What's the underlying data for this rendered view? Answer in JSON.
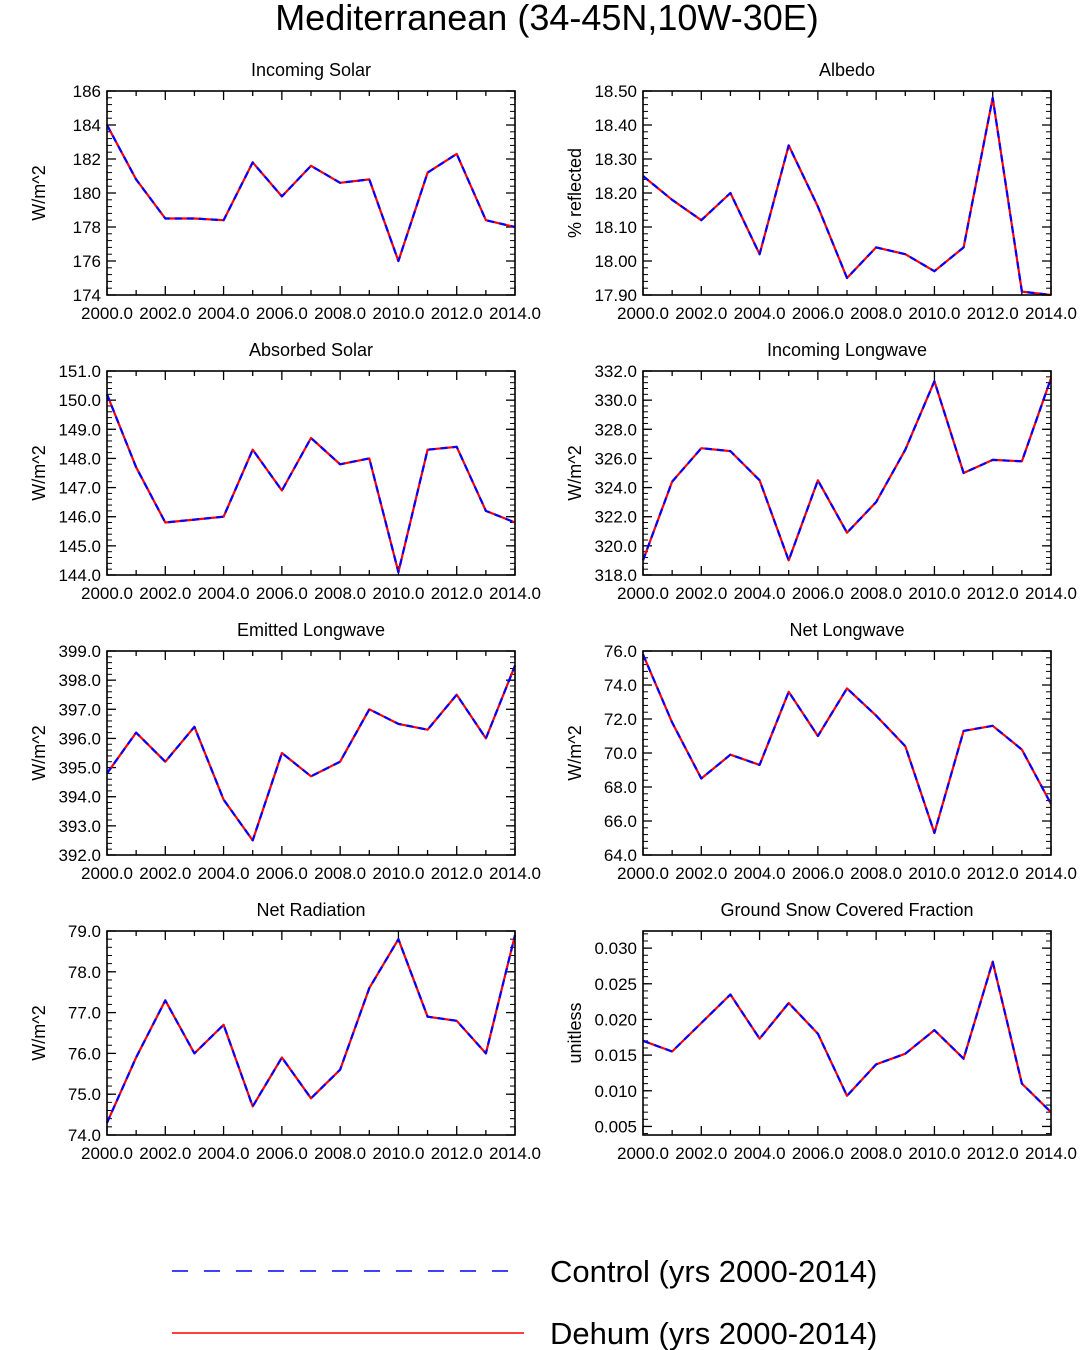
{
  "figure": {
    "title": "Mediterranean (34-45N,10W-30E)"
  },
  "colors": {
    "control": "#0000ff",
    "dehum": "#ff0000",
    "axis": "#000000"
  },
  "legend": [
    {
      "key": "control",
      "label": "Control (yrs 2000-2014)",
      "style": "dashed"
    },
    {
      "key": "dehum",
      "label": "Dehum (yrs 2000-2014)",
      "style": "solid"
    }
  ],
  "chart_data": [
    {
      "type": "line",
      "title": "Incoming Solar",
      "ylabel": "W/m^2",
      "xlim": [
        2000,
        2014
      ],
      "ylim": [
        174,
        186
      ],
      "yticks": [
        "174",
        "176",
        "178",
        "180",
        "182",
        "184",
        "186"
      ],
      "xticks": [
        "2000.0",
        "2002.0",
        "2004.0",
        "2006.0",
        "2008.0",
        "2010.0",
        "2012.0",
        "2014.0"
      ],
      "x": [
        2000,
        2001,
        2002,
        2003,
        2004,
        2005,
        2006,
        2007,
        2008,
        2009,
        2010,
        2011,
        2012,
        2013,
        2014
      ],
      "series": [
        {
          "name": "Control (yrs 2000-2014)",
          "values": [
            184.0,
            180.8,
            178.5,
            178.5,
            178.4,
            181.8,
            179.8,
            181.6,
            180.6,
            180.8,
            176.0,
            181.2,
            182.3,
            178.4,
            178.0
          ]
        },
        {
          "name": "Dehum (yrs 2000-2014)",
          "values": [
            184.0,
            180.8,
            178.5,
            178.5,
            178.4,
            181.8,
            179.8,
            181.6,
            180.6,
            180.8,
            176.0,
            181.2,
            182.3,
            178.4,
            178.0
          ]
        }
      ]
    },
    {
      "type": "line",
      "title": "Albedo",
      "ylabel": "% reflected",
      "xlim": [
        2000,
        2014
      ],
      "ylim": [
        17.9,
        18.5
      ],
      "yticks": [
        "17.90",
        "18.00",
        "18.10",
        "18.20",
        "18.30",
        "18.40",
        "18.50"
      ],
      "xticks": [
        "2000.0",
        "2002.0",
        "2004.0",
        "2006.0",
        "2008.0",
        "2010.0",
        "2012.0",
        "2014.0"
      ],
      "x": [
        2000,
        2001,
        2002,
        2003,
        2004,
        2005,
        2006,
        2007,
        2008,
        2009,
        2010,
        2011,
        2012,
        2013,
        2014
      ],
      "series": [
        {
          "name": "Control (yrs 2000-2014)",
          "values": [
            18.25,
            18.18,
            18.12,
            18.2,
            18.02,
            18.34,
            18.16,
            17.95,
            18.04,
            18.02,
            17.97,
            18.04,
            18.48,
            17.91,
            17.9
          ]
        },
        {
          "name": "Dehum (yrs 2000-2014)",
          "values": [
            18.25,
            18.18,
            18.12,
            18.2,
            18.02,
            18.34,
            18.16,
            17.95,
            18.04,
            18.02,
            17.97,
            18.04,
            18.48,
            17.91,
            17.9
          ]
        }
      ]
    },
    {
      "type": "line",
      "title": "Absorbed Solar",
      "ylabel": "W/m^2",
      "xlim": [
        2000,
        2014
      ],
      "ylim": [
        144,
        151
      ],
      "yticks": [
        "144.0",
        "145.0",
        "146.0",
        "147.0",
        "148.0",
        "149.0",
        "150.0",
        "151.0"
      ],
      "xticks": [
        "2000.0",
        "2002.0",
        "2004.0",
        "2006.0",
        "2008.0",
        "2010.0",
        "2012.0",
        "2014.0"
      ],
      "x": [
        2000,
        2001,
        2002,
        2003,
        2004,
        2005,
        2006,
        2007,
        2008,
        2009,
        2010,
        2011,
        2012,
        2013,
        2014
      ],
      "series": [
        {
          "name": "Control (yrs 2000-2014)",
          "values": [
            150.2,
            147.7,
            145.8,
            145.9,
            146.0,
            148.3,
            146.9,
            148.7,
            147.8,
            148.0,
            144.1,
            148.3,
            148.4,
            146.2,
            145.8
          ]
        },
        {
          "name": "Dehum (yrs 2000-2014)",
          "values": [
            150.2,
            147.7,
            145.8,
            145.9,
            146.0,
            148.3,
            146.9,
            148.7,
            147.8,
            148.0,
            144.1,
            148.3,
            148.4,
            146.2,
            145.8
          ]
        }
      ]
    },
    {
      "type": "line",
      "title": "Incoming Longwave",
      "ylabel": "W/m^2",
      "xlim": [
        2000,
        2014
      ],
      "ylim": [
        318,
        332
      ],
      "yticks": [
        "318.0",
        "320.0",
        "322.0",
        "324.0",
        "326.0",
        "328.0",
        "330.0",
        "332.0"
      ],
      "xticks": [
        "2000.0",
        "2002.0",
        "2004.0",
        "2006.0",
        "2008.0",
        "2010.0",
        "2012.0",
        "2014.0"
      ],
      "x": [
        2000,
        2001,
        2002,
        2003,
        2004,
        2005,
        2006,
        2007,
        2008,
        2009,
        2010,
        2011,
        2012,
        2013,
        2014
      ],
      "series": [
        {
          "name": "Control (yrs 2000-2014)",
          "values": [
            319.0,
            324.4,
            326.7,
            326.5,
            324.5,
            319.0,
            324.5,
            320.9,
            323.0,
            326.6,
            331.3,
            325.0,
            325.9,
            325.8,
            331.5
          ]
        },
        {
          "name": "Dehum (yrs 2000-2014)",
          "values": [
            319.0,
            324.4,
            326.7,
            326.5,
            324.5,
            319.0,
            324.5,
            320.9,
            323.0,
            326.6,
            331.3,
            325.0,
            325.9,
            325.8,
            331.5
          ]
        }
      ]
    },
    {
      "type": "line",
      "title": "Emitted Longwave",
      "ylabel": "W/m^2",
      "xlim": [
        2000,
        2014
      ],
      "ylim": [
        392,
        399
      ],
      "yticks": [
        "392.0",
        "393.0",
        "394.0",
        "395.0",
        "396.0",
        "397.0",
        "398.0",
        "399.0"
      ],
      "xticks": [
        "2000.0",
        "2002.0",
        "2004.0",
        "2006.0",
        "2008.0",
        "2010.0",
        "2012.0",
        "2014.0"
      ],
      "x": [
        2000,
        2001,
        2002,
        2003,
        2004,
        2005,
        2006,
        2007,
        2008,
        2009,
        2010,
        2011,
        2012,
        2013,
        2014
      ],
      "series": [
        {
          "name": "Control (yrs 2000-2014)",
          "values": [
            394.8,
            396.2,
            395.2,
            396.4,
            393.9,
            392.5,
            395.5,
            394.7,
            395.2,
            397.0,
            396.5,
            396.3,
            397.5,
            396.0,
            398.5
          ]
        },
        {
          "name": "Dehum (yrs 2000-2014)",
          "values": [
            394.8,
            396.2,
            395.2,
            396.4,
            393.9,
            392.5,
            395.5,
            394.7,
            395.2,
            397.0,
            396.5,
            396.3,
            397.5,
            396.0,
            398.5
          ]
        }
      ]
    },
    {
      "type": "line",
      "title": "Net Longwave",
      "ylabel": "W/m^2",
      "xlim": [
        2000,
        2014
      ],
      "ylim": [
        64,
        76
      ],
      "yticks": [
        "64.0",
        "66.0",
        "68.0",
        "70.0",
        "72.0",
        "74.0",
        "76.0"
      ],
      "xticks": [
        "2000.0",
        "2002.0",
        "2004.0",
        "2006.0",
        "2008.0",
        "2010.0",
        "2012.0",
        "2014.0"
      ],
      "x": [
        2000,
        2001,
        2002,
        2003,
        2004,
        2005,
        2006,
        2007,
        2008,
        2009,
        2010,
        2011,
        2012,
        2013,
        2014
      ],
      "series": [
        {
          "name": "Control (yrs 2000-2014)",
          "values": [
            75.8,
            71.8,
            68.5,
            69.9,
            69.3,
            73.6,
            71.0,
            73.8,
            72.2,
            70.4,
            65.3,
            71.3,
            71.6,
            70.2,
            67.0
          ]
        },
        {
          "name": "Dehum (yrs 2000-2014)",
          "values": [
            75.8,
            71.8,
            68.5,
            69.9,
            69.3,
            73.6,
            71.0,
            73.8,
            72.2,
            70.4,
            65.3,
            71.3,
            71.6,
            70.2,
            67.0
          ]
        }
      ]
    },
    {
      "type": "line",
      "title": "Net Radiation",
      "ylabel": "W/m^2",
      "xlim": [
        2000,
        2014
      ],
      "ylim": [
        74,
        79
      ],
      "yticks": [
        "74.0",
        "75.0",
        "76.0",
        "77.0",
        "78.0",
        "79.0"
      ],
      "xticks": [
        "2000.0",
        "2002.0",
        "2004.0",
        "2006.0",
        "2008.0",
        "2010.0",
        "2012.0",
        "2014.0"
      ],
      "x": [
        2000,
        2001,
        2002,
        2003,
        2004,
        2005,
        2006,
        2007,
        2008,
        2009,
        2010,
        2011,
        2012,
        2013,
        2014
      ],
      "series": [
        {
          "name": "Control (yrs 2000-2014)",
          "values": [
            74.3,
            75.9,
            77.3,
            76.0,
            76.7,
            74.7,
            75.9,
            74.9,
            75.6,
            77.6,
            78.8,
            76.9,
            76.8,
            76.0,
            78.9
          ]
        },
        {
          "name": "Dehum (yrs 2000-2014)",
          "values": [
            74.3,
            75.9,
            77.3,
            76.0,
            76.7,
            74.7,
            75.9,
            74.9,
            75.6,
            77.6,
            78.8,
            76.9,
            76.8,
            76.0,
            78.9
          ]
        }
      ]
    },
    {
      "type": "line",
      "title": "Ground Snow Covered Fraction",
      "ylabel": "unitless",
      "xlim": [
        2000,
        2014
      ],
      "ylim": [
        0.0038,
        0.0324
      ],
      "yticks": [
        "0.005",
        "0.010",
        "0.015",
        "0.020",
        "0.025",
        "0.030"
      ],
      "xticks": [
        "2000.0",
        "2002.0",
        "2004.0",
        "2006.0",
        "2008.0",
        "2010.0",
        "2012.0",
        "2014.0"
      ],
      "x": [
        2000,
        2001,
        2002,
        2003,
        2004,
        2005,
        2006,
        2007,
        2008,
        2009,
        2010,
        2011,
        2012,
        2013,
        2014
      ],
      "series": [
        {
          "name": "Control (yrs 2000-2014)",
          "values": [
            0.017,
            0.0155,
            0.0195,
            0.0235,
            0.0173,
            0.0223,
            0.018,
            0.0093,
            0.0137,
            0.0152,
            0.0185,
            0.0145,
            0.0281,
            0.011,
            0.007
          ]
        },
        {
          "name": "Dehum (yrs 2000-2014)",
          "values": [
            0.017,
            0.0155,
            0.0195,
            0.0235,
            0.0173,
            0.0223,
            0.018,
            0.0093,
            0.0137,
            0.0152,
            0.0185,
            0.0145,
            0.0281,
            0.011,
            0.007
          ]
        }
      ]
    }
  ]
}
